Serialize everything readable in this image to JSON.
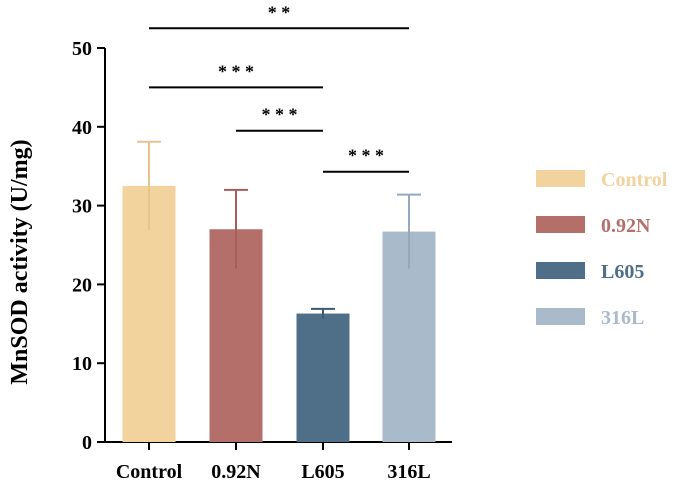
{
  "chart_data": {
    "type": "bar",
    "title": "",
    "xlabel": "",
    "ylabel": "MnSOD activity (U/mg)",
    "ylim": [
      0,
      50
    ],
    "yticks": [
      0,
      10,
      20,
      30,
      40,
      50
    ],
    "categories": [
      "Control",
      "0.92N",
      "L605",
      "316L"
    ],
    "values": [
      32.5,
      27.0,
      16.3,
      26.7
    ],
    "errors": [
      5.6,
      5.0,
      0.6,
      4.7
    ],
    "colors": [
      "#F2D39E",
      "#B56F6B",
      "#4F6E88",
      "#A9BBCB"
    ],
    "error_color": [
      "#E6C48E",
      "#A45F5C",
      "#3C5A74",
      "#94A9BD"
    ],
    "legend": {
      "position": "right",
      "items": [
        {
          "label": "Control",
          "color": "#F2D39E"
        },
        {
          "label": "0.92N",
          "color": "#B56F6B"
        },
        {
          "label": "L605",
          "color": "#4F6E88"
        },
        {
          "label": "316L",
          "color": "#A9BBCB"
        }
      ]
    },
    "significance": [
      {
        "from": 0,
        "to": 3,
        "y": 52.5,
        "label": "* *"
      },
      {
        "from": 0,
        "to": 2,
        "y": 45.0,
        "label": "* * *"
      },
      {
        "from": 1,
        "to": 2,
        "y": 39.5,
        "label": "* * *"
      },
      {
        "from": 2,
        "to": 3,
        "y": 34.3,
        "label": "* * *"
      }
    ]
  }
}
